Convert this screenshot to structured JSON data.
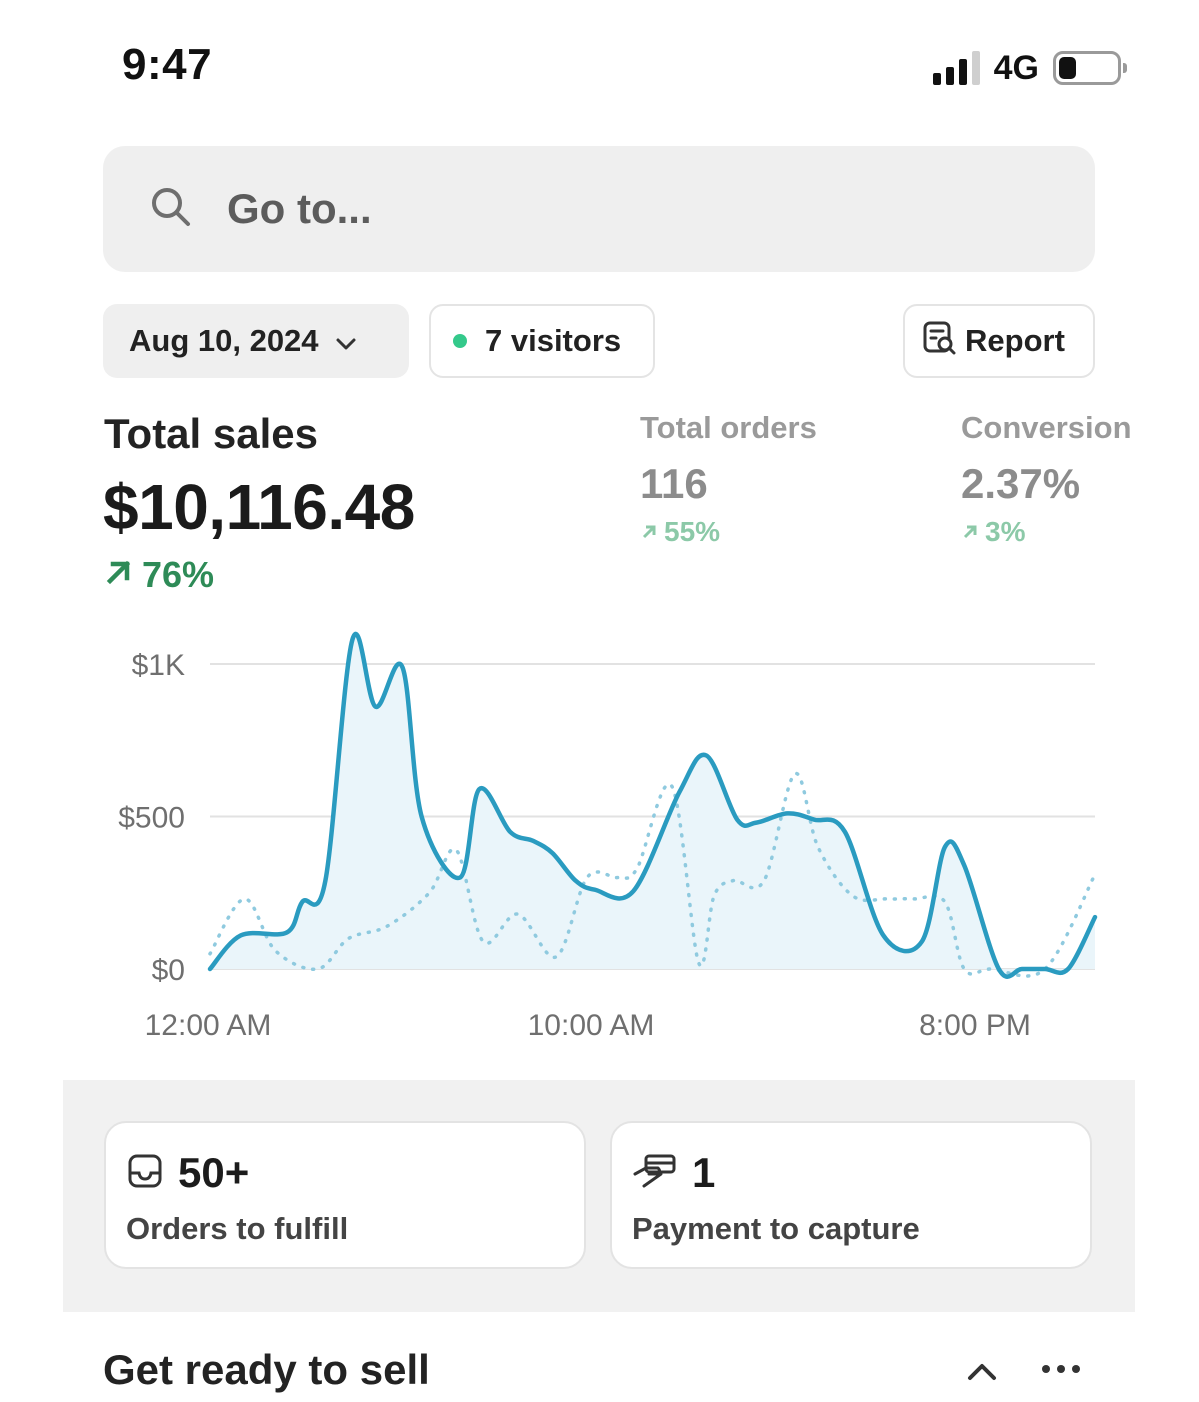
{
  "status_bar": {
    "time": "9:47",
    "network": "4G",
    "battery_level": 0.3
  },
  "search": {
    "placeholder": "Go to...",
    "icon": "search-icon"
  },
  "filters": {
    "date": "Aug 10, 2024",
    "visitors": "7 visitors",
    "visitors_dot_color": "#34c98b",
    "report": "Report"
  },
  "metrics": {
    "total_sales": {
      "label": "Total sales",
      "value": "$10,116.48",
      "change": "76%",
      "color": "#2e8b57"
    },
    "total_orders": {
      "label": "Total orders",
      "value": "116",
      "change": "55%",
      "color": "#8cc9a8"
    },
    "conversion": {
      "label": "Conversion",
      "value": "2.37%",
      "change": "3%",
      "color": "#8cc9a8"
    }
  },
  "chart_data": {
    "type": "line",
    "x_tick_labels": [
      "12:00 AM",
      "10:00 AM",
      "8:00 PM"
    ],
    "y_tick_labels": [
      "$1K",
      "$500",
      "$0"
    ],
    "y_ticks": [
      1000,
      500,
      0
    ],
    "ylim": [
      0,
      1000
    ],
    "xlim": [
      0,
      23
    ],
    "grid": true,
    "colors": {
      "current": "#2a9bc0",
      "previous": "#8fcadf",
      "fill": "#eaf5fa",
      "grid": "#e2e2e2"
    },
    "series": [
      {
        "style": "solid",
        "x": [
          0,
          0.8,
          2,
          2.4,
          3,
          3.7,
          4.3,
          5,
          5.5,
          6.5,
          7,
          7.8,
          8.4,
          8.9,
          9.5,
          10,
          11,
          12.2,
          12.9,
          13.7,
          14.2,
          15,
          15.7,
          16.5,
          17.5,
          18.5,
          19.1,
          19.6,
          20.5,
          21.1,
          21.7,
          22.3,
          23
        ],
        "y": [
          0,
          110,
          120,
          220,
          290,
          1080,
          860,
          990,
          500,
          300,
          590,
          450,
          420,
          380,
          290,
          260,
          255,
          580,
          700,
          490,
          480,
          510,
          490,
          450,
          110,
          90,
          400,
          340,
          0,
          0,
          0,
          0,
          170
        ]
      },
      {
        "style": "dotted",
        "x": [
          0,
          0.9,
          1.7,
          2.8,
          3.6,
          4.6,
          5.7,
          6.4,
          7.1,
          8,
          9,
          9.8,
          10.6,
          11.1,
          12,
          12.7,
          13.1,
          13.6,
          14.4,
          15.2,
          15.8,
          16.7,
          17.6,
          18.3,
          19.1,
          19.6,
          20.3,
          21.7,
          23
        ],
        "y": [
          50,
          230,
          60,
          0,
          100,
          140,
          250,
          390,
          90,
          180,
          40,
          300,
          300,
          330,
          600,
          20,
          240,
          290,
          290,
          640,
          400,
          240,
          230,
          230,
          220,
          0,
          0,
          0,
          310
        ]
      }
    ]
  },
  "cards": [
    {
      "icon": "inbox-icon",
      "value": "50+",
      "label": "Orders to fulfill"
    },
    {
      "icon": "payment-hand-icon",
      "value": "1",
      "label": "Payment to capture"
    }
  ],
  "section": {
    "title": "Get ready to sell"
  }
}
